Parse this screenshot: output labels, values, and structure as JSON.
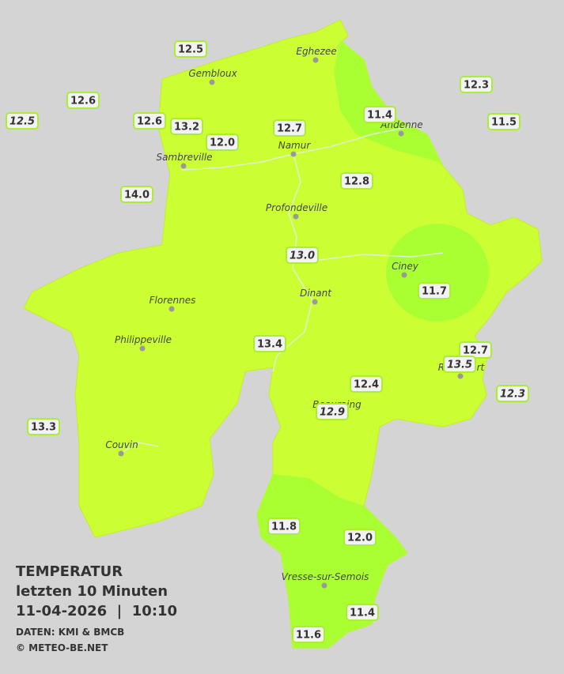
{
  "legend": {
    "title": "TEMPERATUR",
    "subtitle": "letzten 10 Minuten",
    "datetime": "11-04-2026  |  10:10",
    "source": "DATEN: KMI & BMCB",
    "copyright": "© METEO-BE.NET"
  },
  "cities": [
    {
      "name": "Eghezee"
    },
    {
      "name": "Gembloux"
    },
    {
      "name": "Andenne"
    },
    {
      "name": "Namur"
    },
    {
      "name": "Sambreville"
    },
    {
      "name": "Profondeville"
    },
    {
      "name": "Ciney"
    },
    {
      "name": "Dinant"
    },
    {
      "name": "Florennes"
    },
    {
      "name": "Philippeville"
    },
    {
      "name": "Rochefort"
    },
    {
      "name": "Beauraing"
    },
    {
      "name": "Couvin"
    },
    {
      "name": "Vresse-sur-Semois"
    }
  ],
  "stations": [
    {
      "value": "12.5"
    },
    {
      "value": "12.6"
    },
    {
      "value": "12.5"
    },
    {
      "value": "12.6"
    },
    {
      "value": "13.2"
    },
    {
      "value": "12.0"
    },
    {
      "value": "12.7"
    },
    {
      "value": "11.4"
    },
    {
      "value": "12.3"
    },
    {
      "value": "11.5"
    },
    {
      "value": "14.0"
    },
    {
      "value": "12.8"
    },
    {
      "value": "13.0"
    },
    {
      "value": "11.7"
    },
    {
      "value": "13.4"
    },
    {
      "value": "12.7"
    },
    {
      "value": "13.5"
    },
    {
      "value": "12.3"
    },
    {
      "value": "12.4"
    },
    {
      "value": "12.9"
    },
    {
      "value": "13.3"
    },
    {
      "value": "11.8"
    },
    {
      "value": "12.0"
    },
    {
      "value": "11.4"
    },
    {
      "value": "11.6"
    }
  ]
}
